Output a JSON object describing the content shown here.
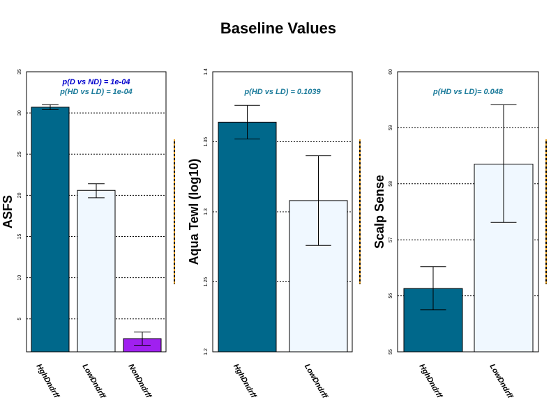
{
  "title": "Baseline Values",
  "colors": {
    "HghDndrff": "#00688B",
    "LowDndrff": "#F0F8FF",
    "NonDndrff": "#A020F0",
    "pval_blue": "#0000CD",
    "pval_teal": "#1A7A9A"
  },
  "chart_data": [
    {
      "type": "bar",
      "ylabel": "ASFS",
      "categories": [
        "HghDndrff",
        "LowDndrff",
        "NonDndrff"
      ],
      "values": [
        30.7,
        20.6,
        2.6
      ],
      "error_low": [
        30.4,
        19.7,
        1.8
      ],
      "error_high": [
        31.0,
        21.4,
        3.4
      ],
      "ylim": [
        1,
        35
      ],
      "yticks": [
        5,
        10,
        15,
        20,
        25,
        30,
        35
      ],
      "grid": true,
      "annotations": [
        {
          "text": "p(D vs ND) = 1e-04",
          "color": "pval_blue"
        },
        {
          "text": "p(HD vs LD) = 1e-04",
          "color": "pval_teal"
        }
      ]
    },
    {
      "type": "bar",
      "ylabel": "Aqua Tewl (log10)",
      "categories": [
        "HghDndrff",
        "LowDndrff"
      ],
      "values": [
        1.364,
        1.308
      ],
      "error_low": [
        1.352,
        1.276
      ],
      "error_high": [
        1.376,
        1.34
      ],
      "ylim": [
        1.2,
        1.4
      ],
      "yticks": [
        1.2,
        1.25,
        1.3,
        1.35,
        1.4
      ],
      "grid": true,
      "annotations": [
        {
          "text": "p(HD vs LD) = 0.1039",
          "color": "pval_teal"
        }
      ]
    },
    {
      "type": "bar",
      "ylabel": "Scalp Sense",
      "categories": [
        "HghDndrff",
        "LowDndrff"
      ],
      "values": [
        56.13,
        58.35
      ],
      "error_low": [
        55.75,
        57.31
      ],
      "error_high": [
        56.52,
        59.41
      ],
      "ylim": [
        55,
        60
      ],
      "yticks": [
        55,
        56,
        57,
        58,
        59,
        60
      ],
      "grid": true,
      "annotations": [
        {
          "text": "p(HD vs LD)= 0.048",
          "color": "pval_teal"
        }
      ]
    }
  ]
}
